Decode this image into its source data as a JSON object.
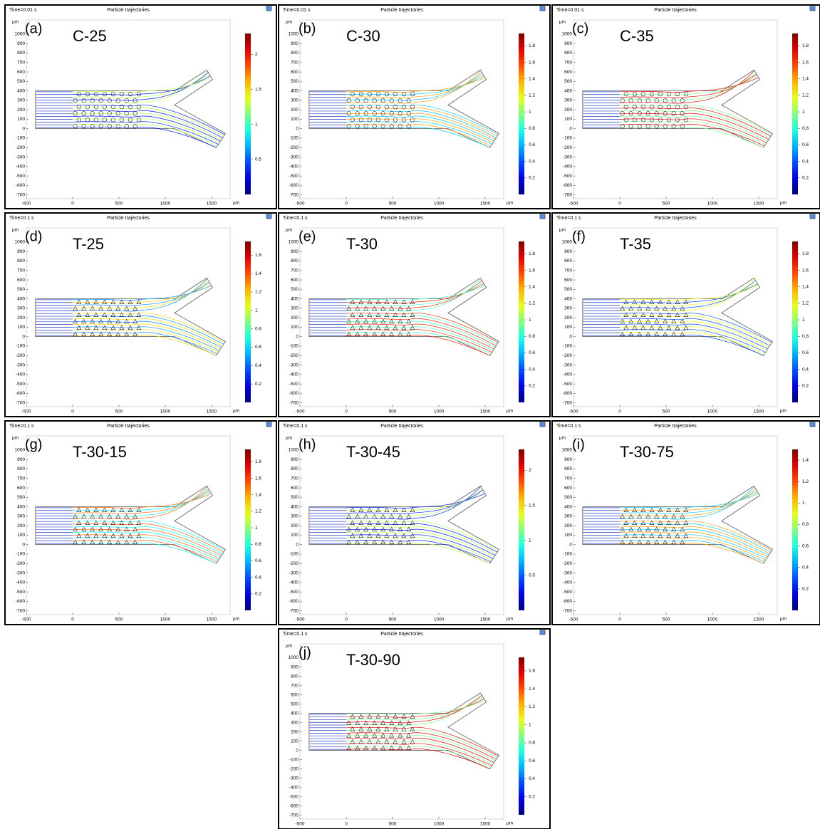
{
  "chart_data": [
    {
      "type": "trajectory",
      "time": "Time=0.01 s",
      "title": "Particle trajectories",
      "panel": "(a)",
      "name": "C-25",
      "x_label": "µm",
      "y_label": "µm",
      "xlim": [
        -500,
        1700
      ],
      "xticks": [
        -500,
        0,
        500,
        1000,
        1500
      ],
      "ylim": [
        -740,
        1150
      ],
      "yticks": [
        1000,
        900,
        800,
        700,
        600,
        500,
        400,
        300,
        200,
        100,
        0,
        -100,
        -200,
        -300,
        -400,
        -500,
        -600,
        -700
      ],
      "colormap": "jet",
      "clim": [
        0,
        2.3
      ],
      "cticks": [
        0.5,
        1,
        1.5,
        2
      ]
    },
    {
      "type": "trajectory",
      "time": "Time=0.01 s",
      "title": "Particle trajectories",
      "panel": "(b)",
      "name": "C-30",
      "x_label": "µm",
      "y_label": "µm",
      "xlim": [
        -500,
        1700
      ],
      "xticks": [
        -500,
        0,
        500,
        1000,
        1500
      ],
      "ylim": [
        -740,
        1150
      ],
      "yticks": [
        1000,
        900,
        800,
        700,
        600,
        500,
        400,
        300,
        200,
        100,
        0,
        -100,
        -200,
        -300,
        -400,
        -500,
        -600,
        -700
      ],
      "colormap": "jet",
      "clim": [
        0,
        1.95
      ],
      "cticks": [
        0.2,
        0.4,
        0.6,
        0.8,
        1,
        1.2,
        1.4,
        1.6,
        1.8
      ]
    },
    {
      "type": "trajectory",
      "time": "Time=0.01 s",
      "title": "Particle trajectories",
      "panel": "(c)",
      "name": "C-35",
      "x_label": "µm",
      "y_label": "µm",
      "xlim": [
        -500,
        1700
      ],
      "xticks": [
        -500,
        0,
        500,
        1000,
        1500
      ],
      "ylim": [
        -740,
        1150
      ],
      "yticks": [
        1000,
        900,
        800,
        700,
        600,
        500,
        400,
        300,
        200,
        100,
        0,
        -100,
        -200,
        -300,
        -400,
        -500,
        -600,
        -700
      ],
      "colormap": "jet",
      "clim": [
        0,
        1.95
      ],
      "cticks": [
        0.2,
        0.4,
        0.6,
        0.8,
        1,
        1.2,
        1.4,
        1.6,
        1.8
      ]
    },
    {
      "type": "trajectory",
      "time": "Time=0.1 s",
      "title": "Particle trajectories",
      "panel": "(d)",
      "name": "T-25",
      "x_label": "µm",
      "y_label": "µm",
      "xlim": [
        -500,
        1700
      ],
      "xticks": [
        -500,
        0,
        500,
        1000,
        1500
      ],
      "ylim": [
        -740,
        1150
      ],
      "yticks": [
        1000,
        900,
        800,
        700,
        600,
        500,
        400,
        300,
        200,
        100,
        0,
        -100,
        -200,
        -300,
        -400,
        -500,
        -600,
        -700
      ],
      "colormap": "jet",
      "clim": [
        0,
        1.75
      ],
      "cticks": [
        0.2,
        0.4,
        0.6,
        0.8,
        1,
        1.2,
        1.4,
        1.6
      ]
    },
    {
      "type": "trajectory",
      "time": "Time=0.1 s",
      "title": "Particle trajectories",
      "panel": "(e)",
      "name": "T-30",
      "x_label": "µm",
      "y_label": "µm",
      "xlim": [
        -500,
        1700
      ],
      "xticks": [
        -500,
        0,
        500,
        1000,
        1500
      ],
      "ylim": [
        -740,
        1150
      ],
      "yticks": [
        1000,
        900,
        800,
        700,
        600,
        500,
        400,
        300,
        200,
        100,
        0,
        -100,
        -200,
        -300,
        -400,
        -500,
        -600,
        -700
      ],
      "colormap": "jet",
      "clim": [
        0,
        1.95
      ],
      "cticks": [
        0.2,
        0.4,
        0.6,
        0.8,
        1,
        1.2,
        1.4,
        1.6,
        1.8
      ]
    },
    {
      "type": "trajectory",
      "time": "Time=0.1 s",
      "title": "Particle trajectories",
      "panel": "(f)",
      "name": "T-35",
      "x_label": "µm",
      "y_label": "µm",
      "xlim": [
        -500,
        1700
      ],
      "xticks": [
        -500,
        0,
        500,
        1000,
        1500
      ],
      "ylim": [
        -740,
        1150
      ],
      "yticks": [
        1000,
        900,
        800,
        700,
        600,
        500,
        400,
        300,
        200,
        100,
        0,
        -100,
        -200,
        -300,
        -400,
        -500,
        -600,
        -700
      ],
      "colormap": "jet",
      "clim": [
        0,
        1.95
      ],
      "cticks": [
        0.2,
        0.4,
        0.6,
        0.8,
        1,
        1.2,
        1.4,
        1.6,
        1.8
      ]
    },
    {
      "type": "trajectory",
      "time": "Time=0.1 s",
      "title": "Particle trajectories",
      "panel": "(g)",
      "name": "T-30-15",
      "x_label": "µm",
      "y_label": "µm",
      "xlim": [
        -500,
        1700
      ],
      "xticks": [
        -500,
        0,
        500,
        1000,
        1500
      ],
      "ylim": [
        -740,
        1150
      ],
      "yticks": [
        1000,
        900,
        800,
        700,
        600,
        500,
        400,
        300,
        200,
        100,
        0,
        -100,
        -200,
        -300,
        -400,
        -500,
        -600,
        -700
      ],
      "colormap": "jet",
      "clim": [
        0,
        1.95
      ],
      "cticks": [
        0.2,
        0.4,
        0.6,
        0.8,
        1,
        1.2,
        1.4,
        1.6,
        1.8
      ]
    },
    {
      "type": "trajectory",
      "time": "Time=0.1 s",
      "title": "Particle trajectories",
      "panel": "(h)",
      "name": "T-30-45",
      "x_label": "µm",
      "y_label": "µm",
      "xlim": [
        -500,
        1700
      ],
      "xticks": [
        -500,
        0,
        500,
        1000,
        1500
      ],
      "ylim": [
        -740,
        1150
      ],
      "yticks": [
        1000,
        900,
        800,
        700,
        600,
        500,
        400,
        300,
        200,
        100,
        0,
        -100,
        -200,
        -300,
        -400,
        -500,
        -600,
        -700
      ],
      "colormap": "jet",
      "clim": [
        0,
        2.3
      ],
      "cticks": [
        0.5,
        1,
        1.5,
        2
      ]
    },
    {
      "type": "trajectory",
      "time": "Time=0.1 s",
      "title": "Particle trajectories",
      "panel": "(i)",
      "name": "T-30-75",
      "x_label": "µm",
      "y_label": "µm",
      "xlim": [
        -500,
        1700
      ],
      "xticks": [
        -500,
        0,
        500,
        1000,
        1500
      ],
      "ylim": [
        -740,
        1150
      ],
      "yticks": [
        1000,
        900,
        800,
        700,
        600,
        500,
        400,
        300,
        200,
        100,
        0,
        -100,
        -200,
        -300,
        -400,
        -500,
        -600,
        -700
      ],
      "colormap": "jet",
      "clim": [
        0,
        1.5
      ],
      "cticks": [
        0.2,
        0.4,
        0.6,
        0.8,
        1,
        1.2,
        1.4
      ]
    },
    {
      "type": "trajectory",
      "time": "Time=0.1 s",
      "title": "Particle trajectories",
      "panel": "(j)",
      "name": "T-30-90",
      "x_label": "µm",
      "y_label": "µm",
      "xlim": [
        -500,
        1700
      ],
      "xticks": [
        -500,
        0,
        500,
        1000,
        1500
      ],
      "ylim": [
        -740,
        1150
      ],
      "yticks": [
        1000,
        900,
        800,
        700,
        600,
        500,
        400,
        300,
        200,
        100,
        0,
        -100,
        -200,
        -300,
        -400,
        -500,
        -600,
        -700
      ],
      "colormap": "jet",
      "clim": [
        0,
        1.75
      ],
      "cticks": [
        0.2,
        0.4,
        0.6,
        0.8,
        1,
        1.2,
        1.4,
        1.6
      ]
    }
  ]
}
